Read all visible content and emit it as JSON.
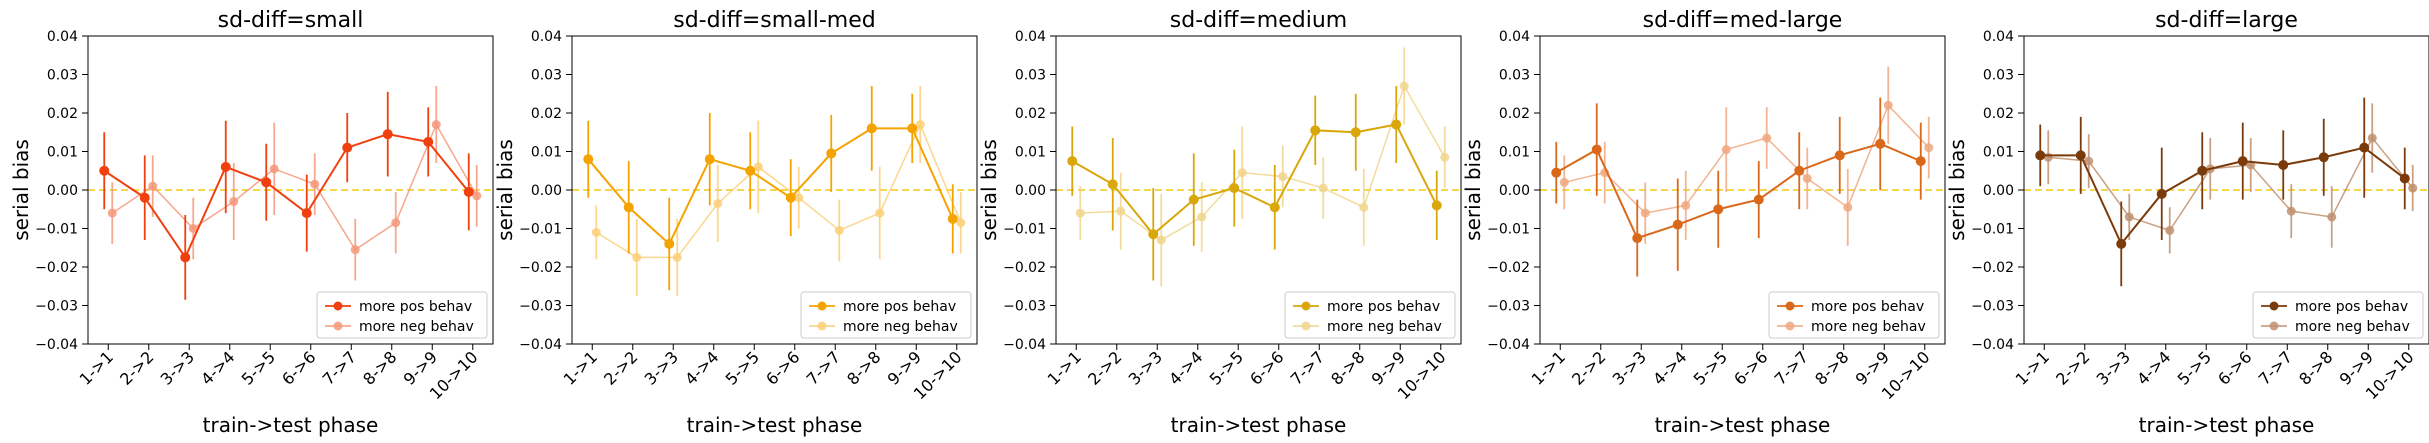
{
  "chart_data": [
    {
      "type": "line",
      "title": "sd-diff=small",
      "xlabel": "train->test phase",
      "ylabel": "serial bias",
      "categories": [
        "1->1",
        "2->2",
        "3->3",
        "4->4",
        "5->5",
        "6->6",
        "7->7",
        "8->8",
        "9->9",
        "10->10"
      ],
      "ylim": [
        -0.04,
        0.04
      ],
      "yticks": [
        "−0.04",
        "−0.03",
        "−0.02",
        "−0.01",
        "0.00",
        "0.01",
        "0.02",
        "0.03",
        "0.04"
      ],
      "reference_line": 0,
      "legend_position": "lower right",
      "series": [
        {
          "name": "more pos behav",
          "color": "#f04010",
          "values": [
            0.005,
            -0.002,
            -0.0175,
            0.006,
            0.002,
            -0.006,
            0.011,
            0.0145,
            0.0125,
            -0.0005
          ],
          "err": [
            0.01,
            0.011,
            0.011,
            0.012,
            0.01,
            0.01,
            0.009,
            0.011,
            0.009,
            0.01
          ]
        },
        {
          "name": "more neg behav",
          "color": "#f6987a",
          "values": [
            -0.006,
            0.001,
            -0.01,
            -0.003,
            0.0055,
            0.0015,
            -0.0155,
            -0.0085,
            0.017,
            -0.0015
          ],
          "err": [
            0.008,
            0.008,
            0.008,
            0.01,
            0.012,
            0.008,
            0.008,
            0.008,
            0.01,
            0.008
          ]
        }
      ]
    },
    {
      "type": "line",
      "title": "sd-diff=small-med",
      "xlabel": "train->test phase",
      "ylabel": "serial bias",
      "categories": [
        "1->1",
        "2->2",
        "3->3",
        "4->4",
        "5->5",
        "6->6",
        "7->7",
        "8->8",
        "9->9",
        "10->10"
      ],
      "ylim": [
        -0.04,
        0.04
      ],
      "yticks": [
        "−0.04",
        "−0.03",
        "−0.02",
        "−0.01",
        "0.00",
        "0.01",
        "0.02",
        "0.03",
        "0.04"
      ],
      "reference_line": 0,
      "legend_position": "lower right",
      "series": [
        {
          "name": "more pos behav",
          "color": "#f5a300",
          "values": [
            0.008,
            -0.0045,
            -0.014,
            0.008,
            0.005,
            -0.002,
            0.0095,
            0.016,
            0.016,
            -0.0075
          ],
          "err": [
            0.01,
            0.012,
            0.012,
            0.012,
            0.01,
            0.01,
            0.01,
            0.011,
            0.009,
            0.009
          ]
        },
        {
          "name": "more neg behav",
          "color": "#fbcf78",
          "values": [
            -0.011,
            -0.0175,
            -0.0175,
            -0.0035,
            0.006,
            -0.002,
            -0.0105,
            -0.006,
            0.017,
            -0.0085
          ],
          "err": [
            0.007,
            0.01,
            0.01,
            0.01,
            0.012,
            0.008,
            0.008,
            0.012,
            0.01,
            0.008
          ]
        }
      ]
    },
    {
      "type": "line",
      "title": "sd-diff=medium",
      "xlabel": "train->test phase",
      "ylabel": "serial bias",
      "categories": [
        "1->1",
        "2->2",
        "3->3",
        "4->4",
        "5->5",
        "6->6",
        "7->7",
        "8->8",
        "9->9",
        "10->10"
      ],
      "ylim": [
        -0.04,
        0.04
      ],
      "yticks": [
        "−0.04",
        "−0.03",
        "−0.02",
        "−0.01",
        "0.00",
        "0.01",
        "0.02",
        "0.03",
        "0.04"
      ],
      "reference_line": 0,
      "legend_position": "lower right",
      "series": [
        {
          "name": "more pos behav",
          "color": "#d9a70a",
          "values": [
            0.0075,
            0.0015,
            -0.0115,
            -0.0025,
            0.0005,
            -0.0045,
            0.0155,
            0.015,
            0.017,
            -0.004
          ],
          "err": [
            0.009,
            0.012,
            0.012,
            0.012,
            0.01,
            0.011,
            0.009,
            0.01,
            0.01,
            0.009
          ]
        },
        {
          "name": "more neg behav",
          "color": "#f0d58c",
          "values": [
            -0.006,
            -0.0055,
            -0.013,
            -0.007,
            0.0045,
            0.0035,
            0.0005,
            -0.0045,
            0.027,
            0.0085
          ],
          "err": [
            0.007,
            0.01,
            0.012,
            0.009,
            0.012,
            0.008,
            0.008,
            0.01,
            0.01,
            0.008
          ]
        }
      ]
    },
    {
      "type": "line",
      "title": "sd-diff=med-large",
      "xlabel": "train->test phase",
      "ylabel": "serial bias",
      "categories": [
        "1->1",
        "2->2",
        "3->3",
        "4->4",
        "5->5",
        "6->6",
        "7->7",
        "8->8",
        "9->9",
        "10->10"
      ],
      "ylim": [
        -0.04,
        0.04
      ],
      "yticks": [
        "−0.04",
        "−0.03",
        "−0.02",
        "−0.01",
        "0.00",
        "0.01",
        "0.02",
        "0.03",
        "0.04"
      ],
      "reference_line": 0,
      "legend_position": "lower right",
      "series": [
        {
          "name": "more pos behav",
          "color": "#d9681a",
          "values": [
            0.0045,
            0.0105,
            -0.0125,
            -0.009,
            -0.005,
            -0.0025,
            0.005,
            0.009,
            0.012,
            0.0075
          ],
          "err": [
            0.008,
            0.012,
            0.01,
            0.012,
            0.01,
            0.01,
            0.01,
            0.01,
            0.012,
            0.01
          ]
        },
        {
          "name": "more neg behav",
          "color": "#f0a880",
          "values": [
            0.002,
            0.0045,
            -0.006,
            -0.004,
            0.0105,
            0.0135,
            0.003,
            -0.0045,
            0.022,
            0.011
          ],
          "err": [
            0.007,
            0.008,
            0.008,
            0.009,
            0.011,
            0.008,
            0.008,
            0.01,
            0.01,
            0.008
          ]
        }
      ]
    },
    {
      "type": "line",
      "title": "sd-diff=large",
      "xlabel": "train->test phase",
      "ylabel": "serial bias",
      "categories": [
        "1->1",
        "2->2",
        "3->3",
        "4->4",
        "5->5",
        "6->6",
        "7->7",
        "8->8",
        "9->9",
        "10->10"
      ],
      "ylim": [
        -0.04,
        0.04
      ],
      "yticks": [
        "−0.04",
        "−0.03",
        "−0.02",
        "−0.01",
        "0.00",
        "0.01",
        "0.02",
        "0.03",
        "0.04"
      ],
      "reference_line": 0,
      "legend_position": "lower right",
      "series": [
        {
          "name": "more pos behav",
          "color": "#7a3a0a",
          "values": [
            0.009,
            0.009,
            -0.014,
            -0.001,
            0.005,
            0.0075,
            0.0065,
            0.0085,
            0.011,
            0.003
          ],
          "err": [
            0.008,
            0.01,
            0.011,
            0.012,
            0.01,
            0.01,
            0.009,
            0.01,
            0.013,
            0.008
          ]
        },
        {
          "name": "more neg behav",
          "color": "#c09070",
          "values": [
            0.0085,
            0.0075,
            -0.007,
            -0.0105,
            0.0055,
            0.0065,
            -0.0055,
            -0.007,
            0.0135,
            0.0005
          ],
          "err": [
            0.007,
            0.007,
            0.006,
            0.006,
            0.008,
            0.007,
            0.007,
            0.008,
            0.009,
            0.006
          ]
        }
      ]
    }
  ]
}
